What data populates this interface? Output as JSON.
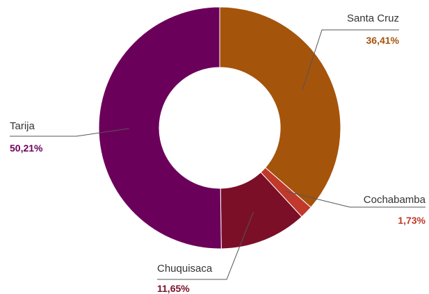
{
  "chart_data": {
    "type": "pie",
    "variant": "donut",
    "title": "",
    "legend": "none",
    "series": [
      {
        "name": "Santa Cruz",
        "value": 36.41,
        "label": "36,41%",
        "color": "#A5540C"
      },
      {
        "name": "Cochabamba",
        "value": 1.73,
        "label": "1,73%",
        "color": "#C0392B"
      },
      {
        "name": "Chuquisaca",
        "value": 11.65,
        "label": "11,65%",
        "color": "#7B0F28"
      },
      {
        "name": "Tarija",
        "value": 50.21,
        "label": "50,21%",
        "color": "#6B005B"
      }
    ]
  }
}
